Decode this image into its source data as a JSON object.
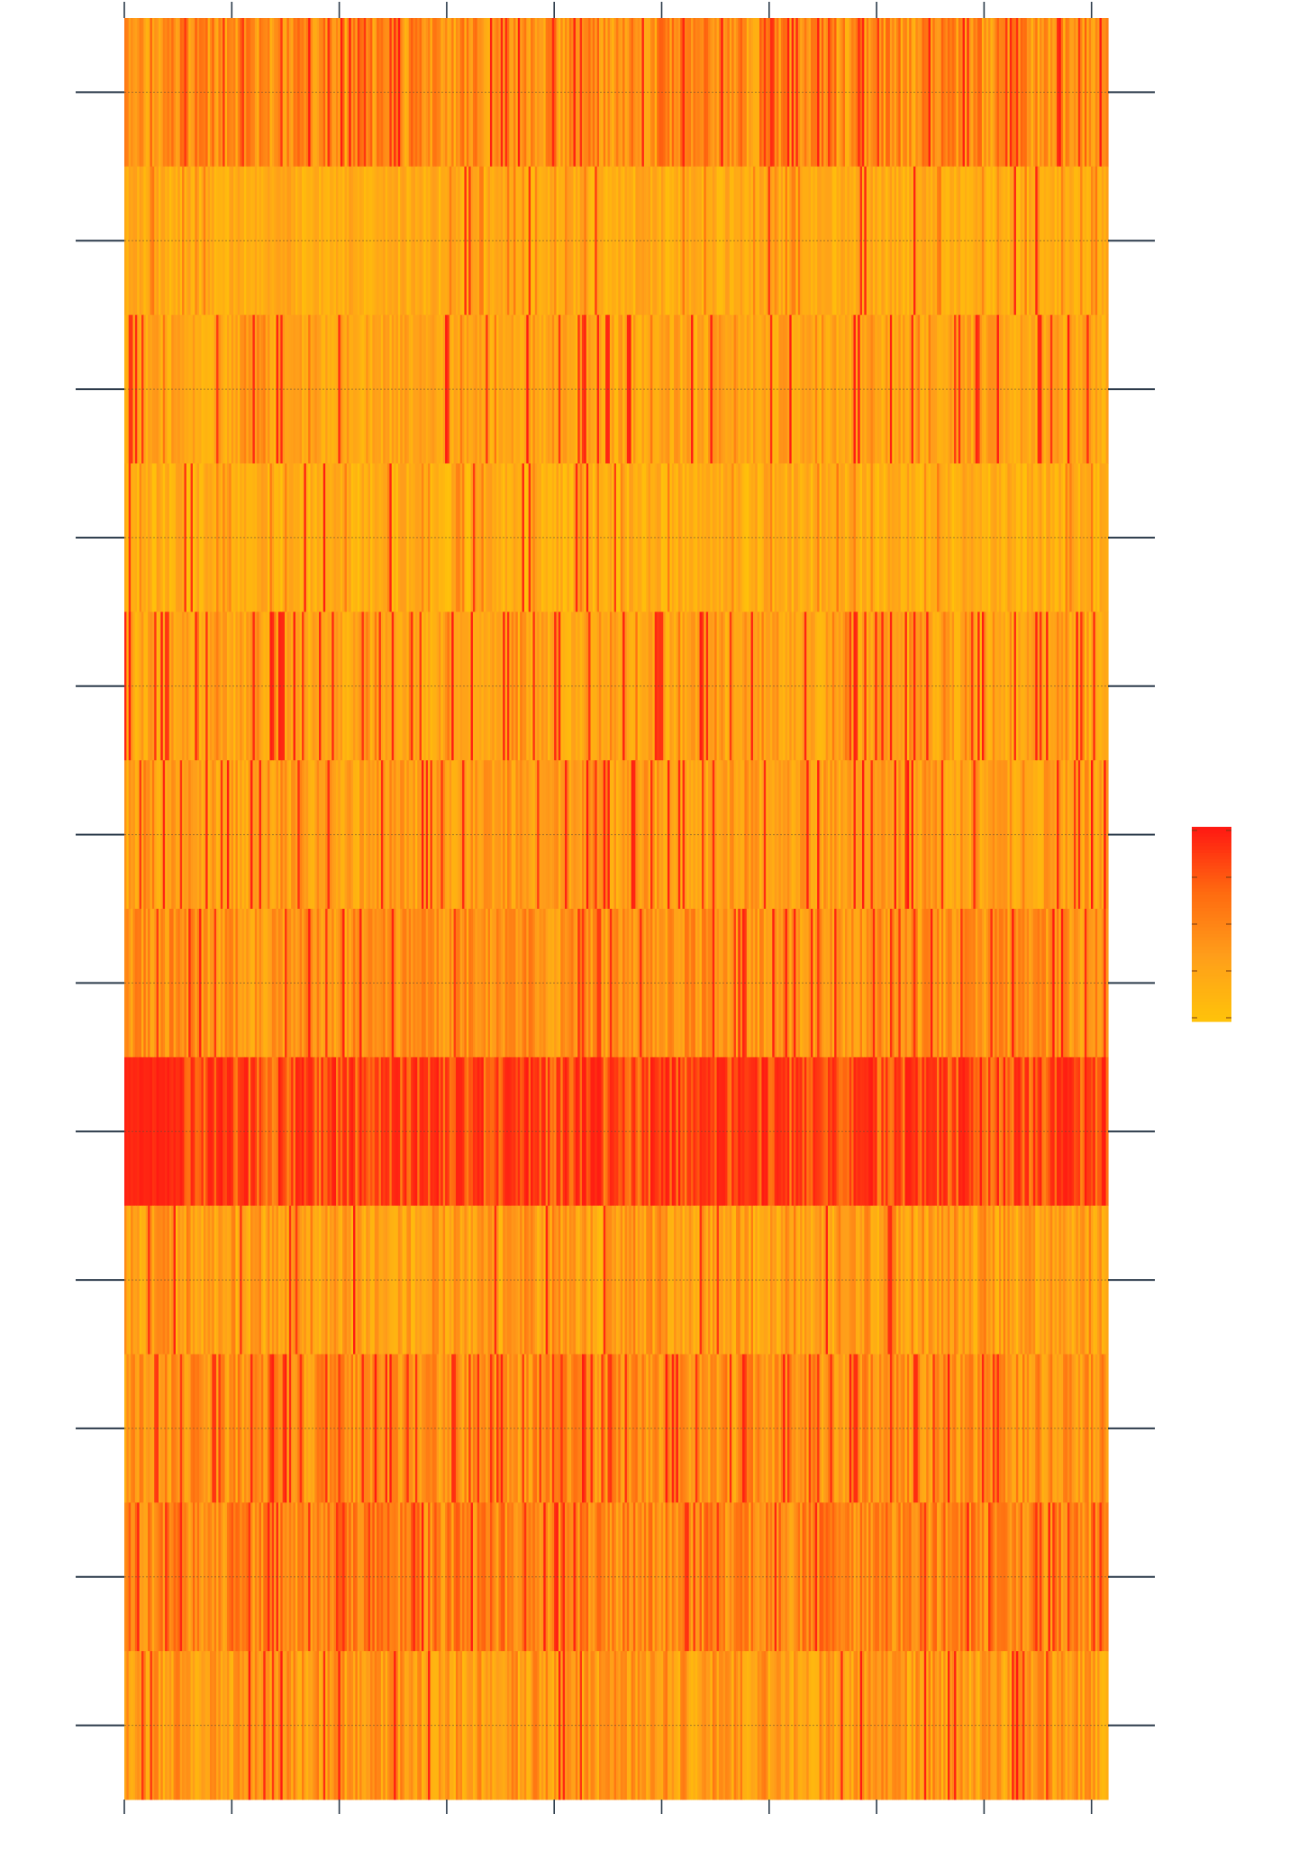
{
  "chart_data": {
    "type": "heatmap",
    "title": "",
    "xlabel": "",
    "ylabel": "",
    "x_tick_labels": [],
    "y_tick_labels": [],
    "x_tick_count": 10,
    "y_tick_count": 12,
    "row_count": 12,
    "columns_per_row": 460,
    "value_range": [
      0,
      1
    ],
    "row_profiles": [
      {
        "base": 0.42,
        "spread": 0.3,
        "hot_prob": 0.1,
        "dark_prob": 0.1
      },
      {
        "base": 0.2,
        "spread": 0.16,
        "hot_prob": 0.015,
        "dark_prob": 0.08
      },
      {
        "base": 0.25,
        "spread": 0.18,
        "hot_prob": 0.1,
        "dark_prob": 0.06
      },
      {
        "base": 0.18,
        "spread": 0.18,
        "hot_prob": 0.03,
        "dark_prob": 0.06
      },
      {
        "base": 0.25,
        "spread": 0.18,
        "hot_prob": 0.14,
        "dark_prob": 0.06
      },
      {
        "base": 0.3,
        "spread": 0.2,
        "hot_prob": 0.08,
        "dark_prob": 0.06
      },
      {
        "base": 0.38,
        "spread": 0.24,
        "hot_prob": 0.08,
        "dark_prob": 0.08
      },
      {
        "base": 0.72,
        "spread": 0.28,
        "hot_prob": 0.35,
        "dark_prob": 0.0
      },
      {
        "base": 0.28,
        "spread": 0.22,
        "hot_prob": 0.04,
        "dark_prob": 0.1
      },
      {
        "base": 0.4,
        "spread": 0.25,
        "hot_prob": 0.14,
        "dark_prob": 0.06
      },
      {
        "base": 0.48,
        "spread": 0.28,
        "hot_prob": 0.08,
        "dark_prob": 0.1
      },
      {
        "base": 0.33,
        "spread": 0.25,
        "hot_prob": 0.05,
        "dark_prob": 0.08
      }
    ],
    "colorscale": [
      "#ffc20a",
      "#ff9e1a",
      "#ff6a10",
      "#ff1a12"
    ],
    "colorbar": {
      "tick_count": 5,
      "tick_labels": []
    },
    "grid": true,
    "legend": "colorbar right"
  },
  "colors": {
    "axis": "#2b3a4a",
    "gridline": "#5a4a3a",
    "background": "#ffffff"
  }
}
